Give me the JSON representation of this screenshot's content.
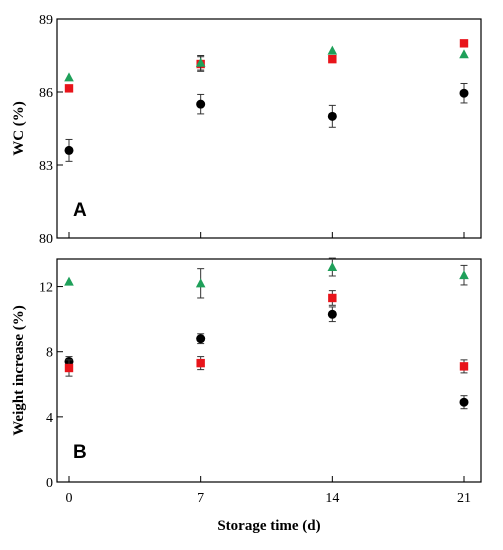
{
  "chart_data": [
    {
      "type": "scatter",
      "panel_label": "A",
      "ylabel": "WC (%)",
      "xlabel": "",
      "x": [
        0,
        7,
        14,
        21
      ],
      "xlim": [
        0,
        21
      ],
      "ylim": [
        80,
        89
      ],
      "yticks": [
        80,
        83,
        86,
        89
      ],
      "xticks": [
        0,
        7,
        14,
        21
      ],
      "grid": false,
      "series": [
        {
          "marker": "circle",
          "color": "#000000",
          "values": [
            83.6,
            85.5,
            85.0,
            85.95
          ],
          "errors": [
            0.45,
            0.4,
            0.45,
            0.4
          ]
        },
        {
          "marker": "square",
          "color": "#e8141a",
          "values": [
            86.15,
            87.15,
            87.35,
            88.0
          ],
          "errors": [
            0.0,
            0.3,
            0.0,
            0.0
          ]
        },
        {
          "marker": "triangle",
          "color": "#1fa05a",
          "values": [
            86.6,
            87.2,
            87.7,
            87.55
          ],
          "errors": [
            0.0,
            0.3,
            0.0,
            0.0
          ]
        }
      ]
    },
    {
      "type": "scatter",
      "panel_label": "B",
      "ylabel": "Weight increase (%)",
      "xlabel": "Storage time (d)",
      "x": [
        0,
        7,
        14,
        21
      ],
      "xlim": [
        0,
        21
      ],
      "ylim": [
        0,
        14
      ],
      "yticks": [
        0,
        4,
        8,
        12
      ],
      "xticks": [
        0,
        7,
        14,
        21
      ],
      "grid": false,
      "series": [
        {
          "marker": "circle",
          "color": "#000000",
          "values": [
            7.4,
            8.8,
            10.3,
            4.9
          ],
          "errors": [
            0.3,
            0.3,
            0.45,
            0.4
          ]
        },
        {
          "marker": "square",
          "color": "#e8141a",
          "values": [
            7.0,
            7.3,
            11.3,
            7.1
          ],
          "errors": [
            0.5,
            0.4,
            0.45,
            0.4
          ]
        },
        {
          "marker": "triangle",
          "color": "#1fa05a",
          "values": [
            12.3,
            12.2,
            13.2,
            12.7
          ],
          "errors": [
            0.0,
            0.9,
            0.55,
            0.6
          ]
        }
      ]
    }
  ]
}
